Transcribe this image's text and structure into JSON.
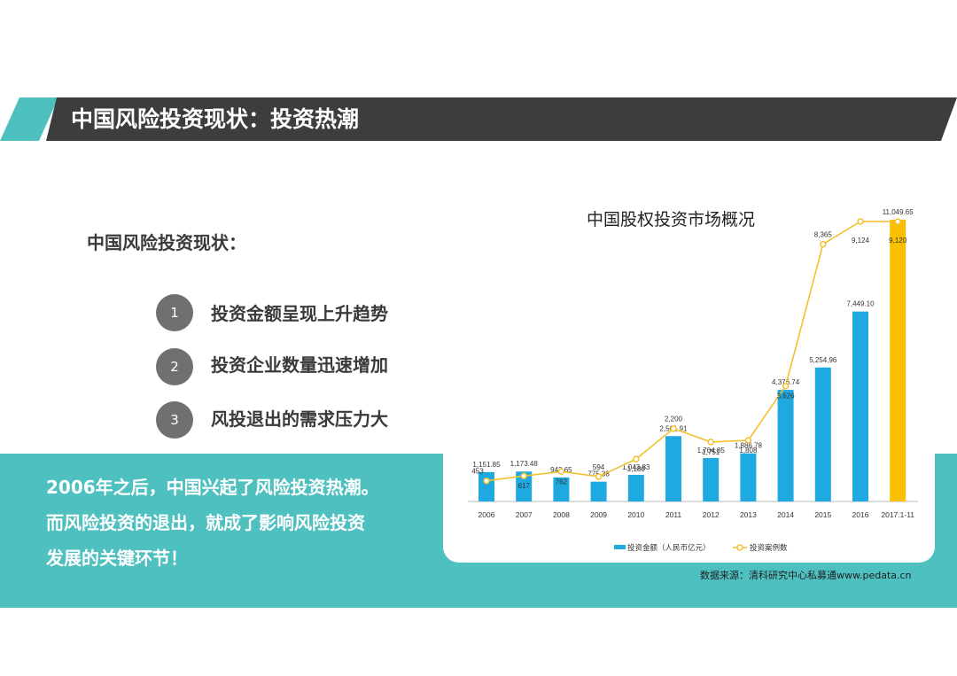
{
  "header": {
    "title": "中国风险投资现状：投资热潮"
  },
  "left": {
    "subheading": "中国风险投资现状：",
    "points": [
      {
        "num": "1",
        "text": "投资金额呈现上升趋势"
      },
      {
        "num": "2",
        "text": "投资企业数量迅速增加"
      },
      {
        "num": "3",
        "text": "风投退出的需求压力大"
      }
    ]
  },
  "summary": [
    "2006年之后，中国兴起了风险投资热潮。",
    "而风险投资的退出，就成了影响风险投资",
    "发展的关键环节！"
  ],
  "source": "数据来源：清科研究中心私募通www.pedata.cn",
  "colors": {
    "teal": "#4ec0c0",
    "dark_header": "#3d3d3d",
    "bar": "#1ea9e1",
    "bar_highlight": "#f8c000",
    "line": "#f2c12e"
  },
  "chart_data": {
    "type": "bar",
    "title": "中国股权投资市场概况",
    "categories": [
      "2006",
      "2007",
      "2008",
      "2009",
      "2010",
      "2011",
      "2012",
      "2013",
      "2014",
      "2015",
      "2016",
      "2017.1-11"
    ],
    "series": [
      {
        "name": "投资金额（人民币亿元）",
        "type": "bar",
        "values": [
          1151.85,
          1173.48,
          943.65,
          775.38,
          1043.83,
          2561.91,
          1704.85,
          1886.78,
          4376.74,
          5254.96,
          7449.1,
          11049.65
        ],
        "labels": [
          "1,151.85",
          "1,173.48",
          "943.65",
          "775.38",
          "1,043.83",
          "2,561.91",
          "1,704.85",
          "1,886.78",
          "4,376.74",
          "5,254.96",
          "7,449.10",
          "11,049.65"
        ]
      },
      {
        "name": "投资案例数",
        "type": "line",
        "values": [
          453,
          617,
          762,
          594,
          1180,
          2200,
          1751,
          1808,
          3626,
          8365,
          9124,
          9120
        ],
        "labels": [
          "453",
          "617",
          "762",
          "594",
          "1,180",
          "2,200",
          "1,751",
          "1,808",
          "3,626",
          "8,365",
          "9,124",
          "9,120"
        ]
      }
    ],
    "highlight_last_bar": true,
    "legend": "bottom"
  }
}
